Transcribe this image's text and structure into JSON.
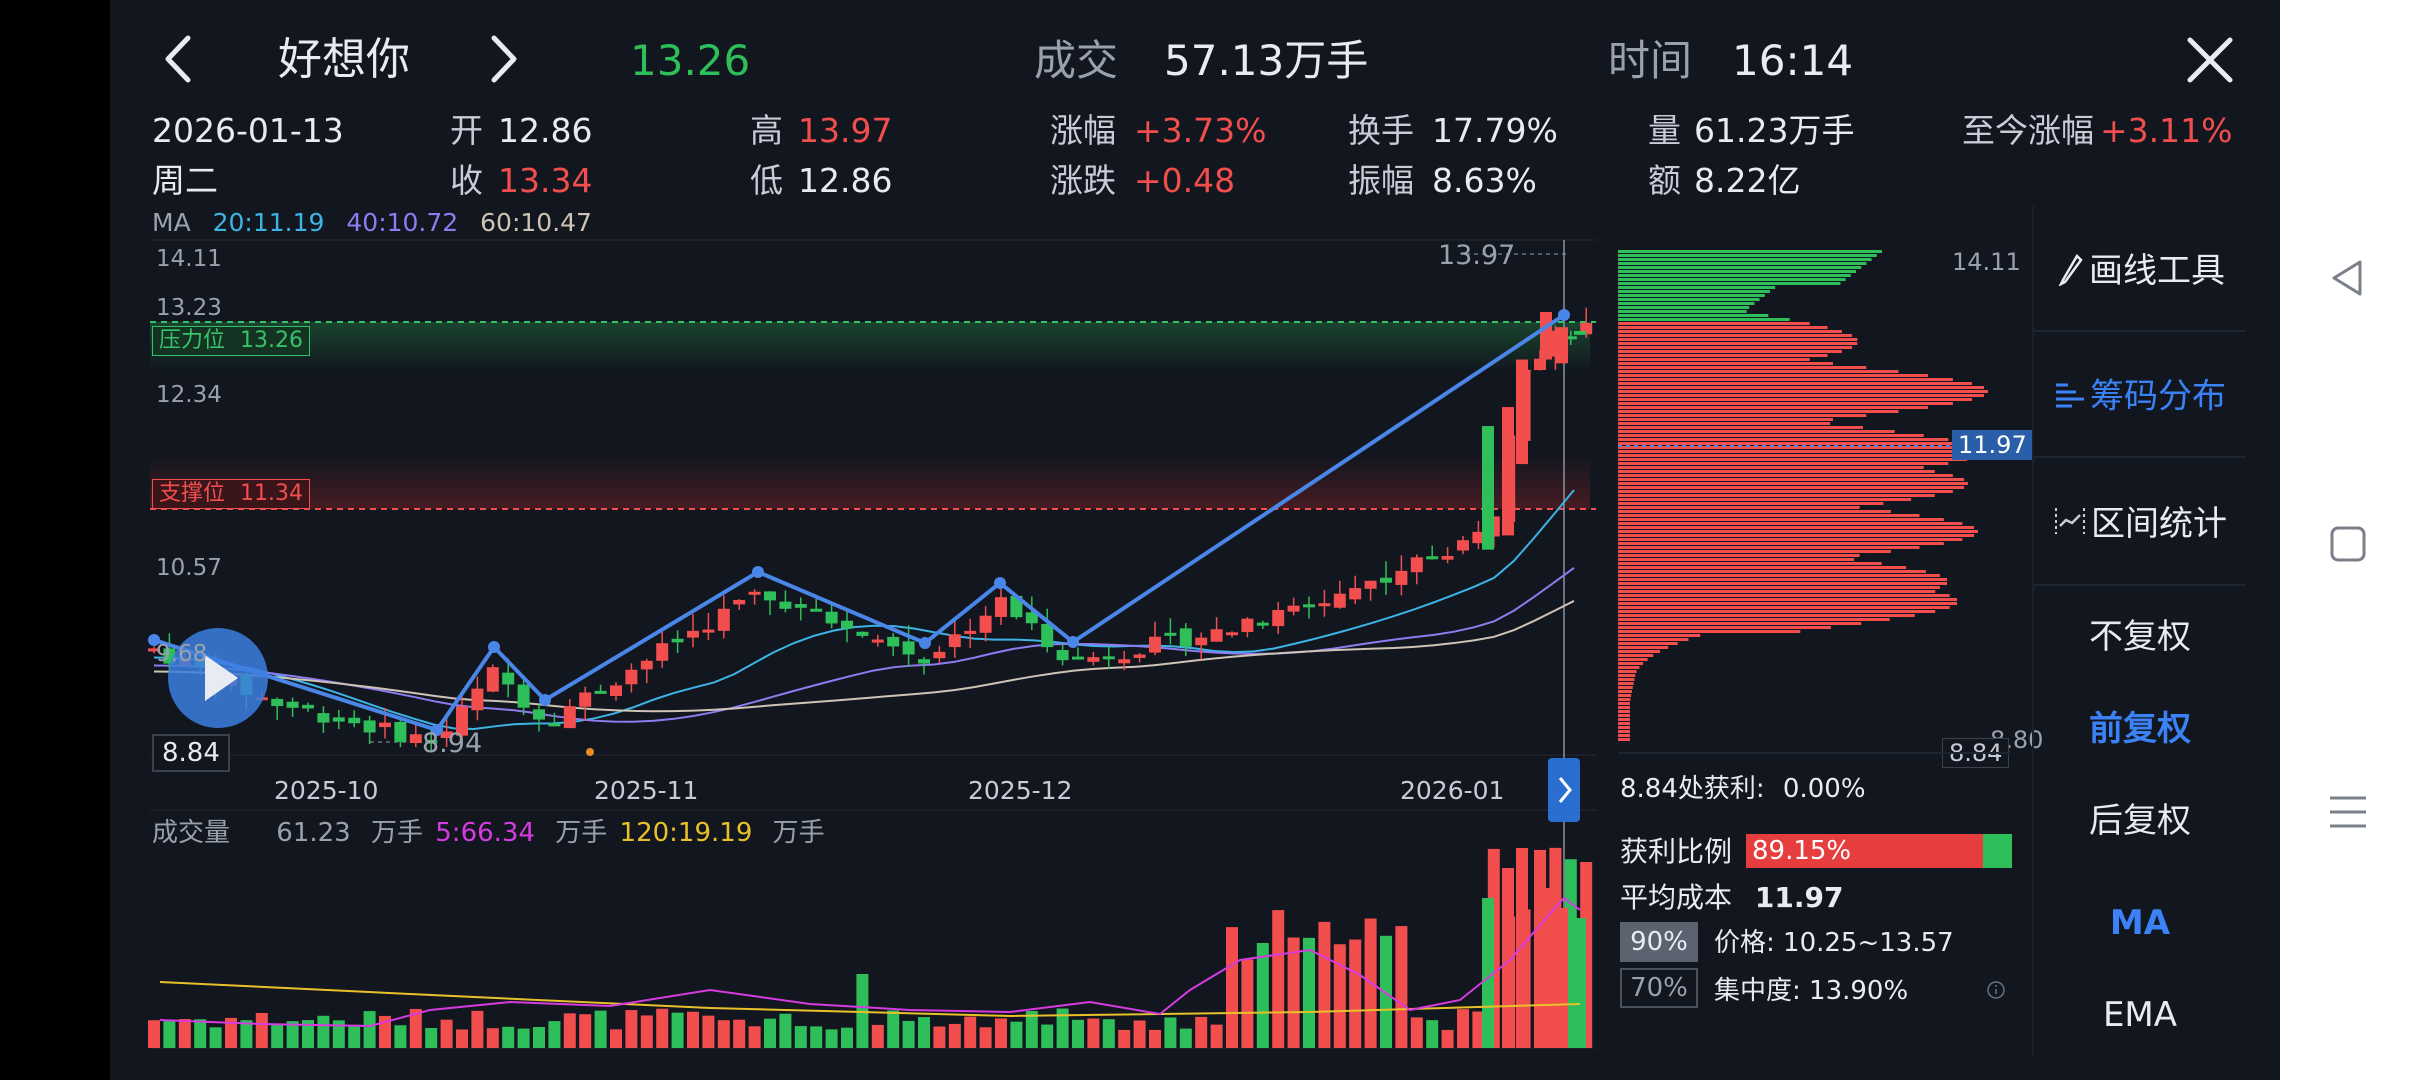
{
  "header": {
    "title": "好想你",
    "price": "13.26",
    "volume_label": "成交",
    "volume_value": "57.13万手",
    "time_label": "时间",
    "time_value": "16:14"
  },
  "quote": {
    "date": "2026-01-13",
    "weekday": "周二",
    "open_label": "开",
    "open": "12.86",
    "close_label": "收",
    "close": "13.34",
    "high_label": "高",
    "high": "13.97",
    "low_label": "低",
    "low": "12.86",
    "pct_label": "涨幅",
    "pct": "+3.73%",
    "chg_label": "涨跌",
    "chg": "+0.48",
    "turnover_label": "换手",
    "turnover": "17.79%",
    "amplitude_label": "振幅",
    "amplitude": "8.63%",
    "vol_label": "量",
    "vol": "61.23万手",
    "amount_label": "额",
    "amount": "8.22亿",
    "since_label": "至今涨幅",
    "since": "+3.11%"
  },
  "ma": {
    "label": "MA",
    "ma20": "20:11.19",
    "ma40": "40:10.72",
    "ma60": "60:10.47"
  },
  "price_axis": {
    "t1": "14.11",
    "t2": "13.23",
    "t3": "12.34",
    "t5": "10.57",
    "t6": "9.68",
    "current_left": "8.84"
  },
  "resistance": {
    "label": "压力位",
    "value": "13.26"
  },
  "support": {
    "label": "支撑位",
    "value": "11.34"
  },
  "peak_label": "13.97",
  "low_label": "8.94",
  "date_axis": [
    "2025-10",
    "2025-11",
    "2025-12",
    "2026-01"
  ],
  "volume_panel": {
    "label": "成交量",
    "current": "61.23",
    "unit": "万手",
    "ma5": "5:66.34",
    "ma120": "120:19.19"
  },
  "chips": {
    "top": "14.11",
    "bottom": "8.80",
    "bottom_right": "8.84",
    "avg_marker": "11.97",
    "profit_at": "8.84处获利:",
    "profit_at_value": "0.00%",
    "ratio_label": "获利比例",
    "ratio_value": "89.15%",
    "ratio_fraction": 0.8915,
    "avg_label": "平均成本",
    "avg_value": "11.97",
    "p90": "90%",
    "p90_range": "价格: 10.25~13.57",
    "p70": "70%",
    "concentration": "集中度: 13.90%"
  },
  "sidebar": [
    {
      "label": "画线工具",
      "icon": "pen-icon"
    },
    {
      "label": "筹码分布",
      "icon": "bars-icon",
      "active": true
    },
    {
      "label": "区间统计",
      "icon": "range-icon"
    },
    {
      "label": "不复权"
    },
    {
      "label": "前复权",
      "active": true
    },
    {
      "label": "后复权"
    },
    {
      "label": "MA",
      "active": true
    },
    {
      "label": "EMA"
    }
  ],
  "colors": {
    "up": "#f24e4e",
    "down": "#2fbf5a",
    "accent": "#3b82f6",
    "ma20": "#3cb4e6",
    "ma40": "#8c7cf0",
    "ma60": "#cfc3b6"
  }
}
